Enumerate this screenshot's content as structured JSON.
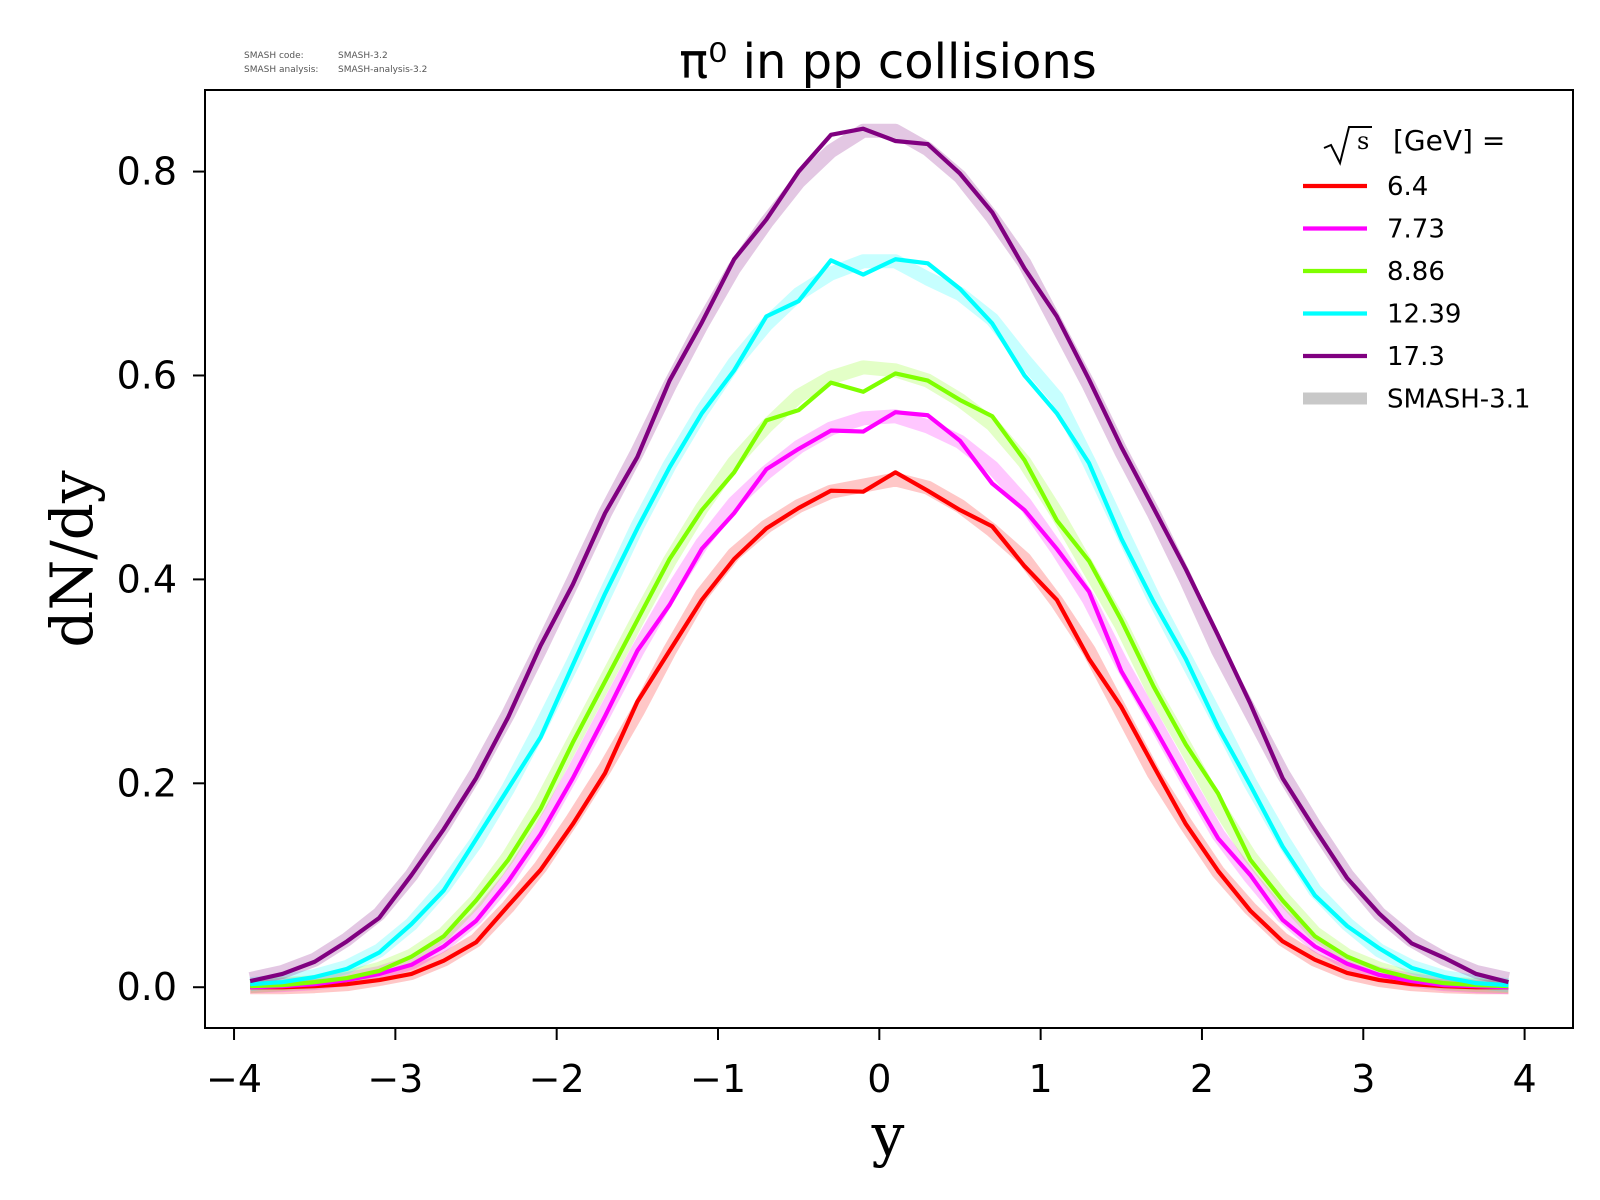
{
  "header": {
    "smash_code_label": "SMASH code:",
    "smash_code_value": "SMASH-3.2",
    "smash_analysis_label": "SMASH analysis:",
    "smash_analysis_value": "SMASH-analysis-3.2"
  },
  "chart_data": {
    "type": "line",
    "title": "π⁰ in pp collisions",
    "xlabel": "y",
    "ylabel": "dN/dy",
    "xlim": [
      -4.18,
      4.3
    ],
    "ylim": [
      -0.04,
      0.88
    ],
    "xticks": [
      -4,
      -3,
      -2,
      -1,
      0,
      1,
      2,
      3,
      4
    ],
    "xtick_labels": [
      "−4",
      "−3",
      "−2",
      "−1",
      "0",
      "1",
      "2",
      "3",
      "4"
    ],
    "yticks": [
      0.0,
      0.2,
      0.4,
      0.6,
      0.8
    ],
    "ytick_labels": [
      "0.0",
      "0.2",
      "0.4",
      "0.6",
      "0.8"
    ],
    "grid": false,
    "legend": {
      "placement": "top-right",
      "title": "[GeV] =",
      "title_symbol": "√s",
      "reference_label": "SMASH-3.1",
      "reference_color": "#c8c8c8"
    },
    "x": [
      -3.9,
      -3.7,
      -3.5,
      -3.3,
      -3.1,
      -2.9,
      -2.7,
      -2.5,
      -2.3,
      -2.1,
      -1.9,
      -1.7,
      -1.5,
      -1.3,
      -1.1,
      -0.9,
      -0.7,
      -0.5,
      -0.3,
      -0.1,
      0.1,
      0.3,
      0.5,
      0.7,
      0.9,
      1.1,
      1.3,
      1.5,
      1.7,
      1.9,
      2.1,
      2.3,
      2.5,
      2.7,
      2.9,
      3.1,
      3.3,
      3.5,
      3.7,
      3.9
    ],
    "series": [
      {
        "name": "6.4",
        "color": "#ff0000",
        "values": [
          0.0,
          0.0,
          0.001,
          0.003,
          0.007,
          0.013,
          0.026,
          0.044,
          0.08,
          0.115,
          0.16,
          0.21,
          0.28,
          0.33,
          0.38,
          0.42,
          0.45,
          0.47,
          0.487,
          0.486,
          0.505,
          0.487,
          0.468,
          0.452,
          0.413,
          0.38,
          0.322,
          0.275,
          0.217,
          0.16,
          0.114,
          0.075,
          0.045,
          0.027,
          0.014,
          0.007,
          0.003,
          0.001,
          0.0,
          0.0
        ],
        "reference": [
          0.0,
          0.0,
          0.001,
          0.003,
          0.008,
          0.014,
          0.027,
          0.046,
          0.079,
          0.118,
          0.165,
          0.215,
          0.27,
          0.33,
          0.385,
          0.425,
          0.452,
          0.472,
          0.486,
          0.492,
          0.498,
          0.49,
          0.472,
          0.448,
          0.42,
          0.378,
          0.33,
          0.27,
          0.21,
          0.16,
          0.113,
          0.077,
          0.047,
          0.027,
          0.014,
          0.007,
          0.003,
          0.001,
          0.0,
          0.0
        ]
      },
      {
        "name": "7.73",
        "color": "#ff00ff",
        "values": [
          0.0,
          0.001,
          0.003,
          0.007,
          0.013,
          0.022,
          0.04,
          0.065,
          0.104,
          0.15,
          0.205,
          0.266,
          0.33,
          0.375,
          0.43,
          0.465,
          0.508,
          0.528,
          0.546,
          0.545,
          0.564,
          0.561,
          0.536,
          0.494,
          0.468,
          0.43,
          0.388,
          0.31,
          0.256,
          0.2,
          0.146,
          0.11,
          0.066,
          0.04,
          0.023,
          0.012,
          0.006,
          0.002,
          0.001,
          0.0
        ],
        "reference": [
          0.001,
          0.002,
          0.004,
          0.008,
          0.014,
          0.024,
          0.042,
          0.068,
          0.106,
          0.154,
          0.21,
          0.27,
          0.33,
          0.385,
          0.435,
          0.475,
          0.505,
          0.53,
          0.548,
          0.558,
          0.56,
          0.55,
          0.535,
          0.51,
          0.475,
          0.43,
          0.38,
          0.318,
          0.262,
          0.205,
          0.15,
          0.108,
          0.07,
          0.042,
          0.024,
          0.013,
          0.007,
          0.003,
          0.001,
          0.0
        ]
      },
      {
        "name": "8.86",
        "color": "#7fff00",
        "values": [
          0.001,
          0.002,
          0.005,
          0.009,
          0.016,
          0.03,
          0.05,
          0.085,
          0.125,
          0.175,
          0.24,
          0.3,
          0.36,
          0.42,
          0.468,
          0.505,
          0.556,
          0.566,
          0.593,
          0.584,
          0.602,
          0.595,
          0.576,
          0.56,
          0.517,
          0.458,
          0.418,
          0.36,
          0.295,
          0.238,
          0.19,
          0.125,
          0.085,
          0.05,
          0.03,
          0.017,
          0.009,
          0.004,
          0.002,
          0.001
        ],
        "reference": [
          0.001,
          0.003,
          0.005,
          0.01,
          0.018,
          0.031,
          0.052,
          0.085,
          0.128,
          0.18,
          0.24,
          0.3,
          0.36,
          0.418,
          0.47,
          0.515,
          0.55,
          0.58,
          0.598,
          0.608,
          0.605,
          0.595,
          0.576,
          0.552,
          0.515,
          0.465,
          0.41,
          0.355,
          0.29,
          0.235,
          0.178,
          0.128,
          0.088,
          0.053,
          0.031,
          0.018,
          0.009,
          0.004,
          0.002,
          0.001
        ]
      },
      {
        "name": "12.39",
        "color": "#00ffff",
        "values": [
          0.003,
          0.005,
          0.01,
          0.018,
          0.034,
          0.062,
          0.095,
          0.145,
          0.195,
          0.245,
          0.316,
          0.386,
          0.45,
          0.51,
          0.563,
          0.605,
          0.658,
          0.673,
          0.713,
          0.699,
          0.714,
          0.71,
          0.685,
          0.651,
          0.6,
          0.563,
          0.514,
          0.44,
          0.378,
          0.322,
          0.255,
          0.198,
          0.138,
          0.09,
          0.06,
          0.038,
          0.019,
          0.01,
          0.004,
          0.002
        ],
        "reference": [
          0.003,
          0.006,
          0.011,
          0.02,
          0.036,
          0.062,
          0.098,
          0.142,
          0.195,
          0.255,
          0.318,
          0.385,
          0.452,
          0.512,
          0.565,
          0.612,
          0.65,
          0.68,
          0.7,
          0.712,
          0.712,
          0.695,
          0.68,
          0.655,
          0.615,
          0.578,
          0.515,
          0.448,
          0.382,
          0.322,
          0.262,
          0.2,
          0.145,
          0.095,
          0.062,
          0.036,
          0.02,
          0.01,
          0.005,
          0.002
        ]
      },
      {
        "name": "17.3",
        "color": "#800080",
        "values": [
          0.006,
          0.013,
          0.025,
          0.045,
          0.068,
          0.11,
          0.155,
          0.205,
          0.265,
          0.335,
          0.395,
          0.465,
          0.52,
          0.595,
          0.652,
          0.714,
          0.753,
          0.8,
          0.836,
          0.842,
          0.83,
          0.827,
          0.798,
          0.76,
          0.705,
          0.658,
          0.596,
          0.53,
          0.47,
          0.41,
          0.345,
          0.278,
          0.205,
          0.155,
          0.107,
          0.072,
          0.043,
          0.029,
          0.013,
          0.005
        ],
        "reference": [
          0.008,
          0.015,
          0.027,
          0.047,
          0.072,
          0.11,
          0.158,
          0.21,
          0.268,
          0.332,
          0.398,
          0.465,
          0.525,
          0.59,
          0.65,
          0.705,
          0.75,
          0.79,
          0.82,
          0.84,
          0.84,
          0.822,
          0.795,
          0.755,
          0.71,
          0.65,
          0.59,
          0.525,
          0.465,
          0.4,
          0.33,
          0.27,
          0.21,
          0.158,
          0.11,
          0.072,
          0.046,
          0.028,
          0.015,
          0.008
        ]
      }
    ]
  }
}
